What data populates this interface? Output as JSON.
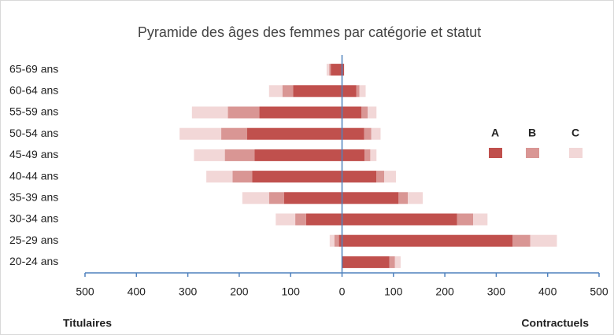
{
  "chart_data": {
    "type": "pyramid",
    "title": "Pyramide des âges des femmes par catégorie et statut",
    "categories": [
      "65-69 ans",
      "60-64 ans",
      "55-59 ans",
      "50-54 ans",
      "45-49 ans",
      "40-44 ans",
      "35-39 ans",
      "30-34 ans",
      "25-29 ans",
      "20-24 ans"
    ],
    "left_label": "Titulaires",
    "right_label": "Contractuels",
    "series": [
      {
        "name": "A",
        "color": "#c0504d",
        "titulaires": [
          -22,
          -95,
          -161,
          -185,
          -170,
          -175,
          -113,
          -70,
          -6,
          0
        ],
        "contractuels": [
          4,
          28,
          38,
          43,
          44,
          67,
          110,
          224,
          332,
          92
        ]
      },
      {
        "name": "B",
        "color": "#d99694",
        "titulaires": [
          -3,
          -21,
          -61,
          -50,
          -58,
          -38,
          -29,
          -21,
          -9,
          0
        ],
        "contractuels": [
          0,
          6,
          12,
          14,
          11,
          15,
          18,
          31,
          34,
          11
        ]
      },
      {
        "name": "C",
        "color": "#f2d7d7",
        "titulaires": [
          -5,
          -26,
          -70,
          -81,
          -60,
          -51,
          -52,
          -38,
          -9,
          0
        ],
        "contractuels": [
          0,
          12,
          17,
          18,
          12,
          23,
          29,
          28,
          52,
          11
        ]
      }
    ],
    "xlim": [
      -500,
      500
    ],
    "xticks": [
      {
        "value": -500,
        "label": "500"
      },
      {
        "value": -400,
        "label": "400"
      },
      {
        "value": -300,
        "label": "300"
      },
      {
        "value": -200,
        "label": "200"
      },
      {
        "value": -100,
        "label": "100"
      },
      0,
      100,
      200,
      300,
      400,
      500
    ]
  }
}
